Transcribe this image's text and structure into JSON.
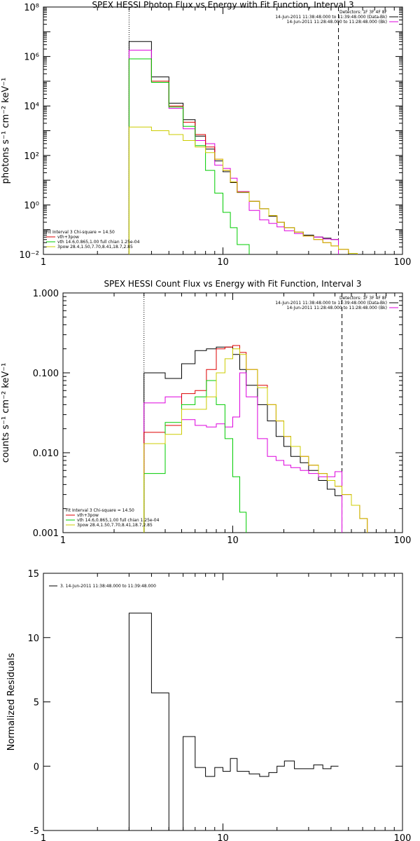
{
  "chart_data": [
    {
      "type": "line",
      "subtype": "histogram-step",
      "title": "SPEX HESSI Photon Flux vs Energy with Fit Function, Interval 3",
      "ylabel": "photons s⁻¹ cm⁻² keV⁻¹",
      "xlabel": "",
      "xscale": "log",
      "yscale": "log",
      "xlim": [
        1,
        100
      ],
      "ylim": [
        0.01,
        100000000
      ],
      "x_tick_labels": [
        "1",
        "10",
        "100"
      ],
      "y_tick_labels": [
        "10⁻²",
        "10⁰",
        "10²",
        "10⁴",
        "10⁶",
        "10⁸"
      ],
      "vertical_lines": [
        {
          "x": 3,
          "style": "dotted"
        },
        {
          "x": 44,
          "style": "dashed"
        }
      ],
      "legend_top": [
        "Detectors: 1F 3F 4F 8F",
        "14-Jun-2011 11:38:48.000 to 11:39:48.000 (Data-Bk)",
        "14-Jun-2011 11:28:48.000 to 11:28:48.000 (Bk)"
      ],
      "legend_bottom": [
        "Fit Interval 3   Chi-square = 14.50",
        "vth+3pow",
        "vth 14.6,0.865,1.00  full chian 1.25e-04",
        "3pow 28.4,1.50,7.70,8.41,18.7,2.85"
      ],
      "series": [
        {
          "name": "Data-Bk",
          "color": "#000000",
          "edges": [
            3,
            4,
            5,
            6,
            7,
            8,
            9,
            10,
            11,
            12,
            14,
            16,
            18,
            20,
            22,
            25,
            28,
            32,
            36,
            40,
            44
          ],
          "values": [
            4000000,
            150000,
            13000,
            2800,
            600,
            180,
            60,
            22,
            8,
            3.2,
            1.4,
            0.7,
            0.35,
            0.2,
            0.12,
            0.08,
            0.06,
            0.05,
            0.045,
            0.04
          ]
        },
        {
          "name": "Bk",
          "color": "#dd00dd",
          "edges": [
            3,
            4,
            5,
            6,
            7,
            8,
            9,
            10,
            11,
            12,
            14,
            16,
            18,
            20,
            22,
            25,
            28,
            32,
            36,
            40,
            44
          ],
          "values": [
            1800000,
            90000,
            8000,
            1200,
            400,
            300,
            40,
            30,
            12,
            3.5,
            0.6,
            0.25,
            0.18,
            0.13,
            0.09,
            0.07,
            0.055,
            0.05,
            0.042,
            0.04
          ]
        },
        {
          "name": "vth+3pow",
          "color": "#dd0000",
          "edges": [
            3,
            4,
            5,
            6,
            7,
            8,
            9,
            10,
            11,
            12,
            14,
            16,
            18,
            20,
            22,
            25,
            28,
            32,
            36,
            40,
            44,
            50,
            56
          ],
          "values": [
            800000,
            100000,
            10000,
            2200,
            700,
            220,
            70,
            25,
            8.5,
            3.3,
            1.4,
            0.7,
            0.37,
            0.2,
            0.12,
            0.08,
            0.055,
            0.04,
            0.03,
            0.022,
            0.016,
            0.011
          ]
        },
        {
          "name": "vth",
          "color": "#00cc00",
          "edges": [
            3,
            4,
            5,
            6,
            7,
            8,
            9,
            10,
            11,
            12,
            14,
            16
          ],
          "values": [
            800000,
            90000,
            9000,
            1500,
            250,
            25,
            3,
            0.5,
            0.12,
            0.025,
            0.004
          ]
        },
        {
          "name": "3pow",
          "color": "#cccc00",
          "edges": [
            3,
            4,
            5,
            6,
            7,
            8,
            9,
            10,
            11,
            12,
            14,
            16,
            18,
            20,
            22,
            25,
            28,
            32,
            36,
            40,
            44,
            50,
            56
          ],
          "values": [
            1400,
            1000,
            700,
            400,
            220,
            130,
            70,
            25,
            8.5,
            3.3,
            1.4,
            0.7,
            0.37,
            0.2,
            0.12,
            0.08,
            0.055,
            0.04,
            0.03,
            0.022,
            0.016,
            0.011
          ]
        }
      ]
    },
    {
      "type": "line",
      "subtype": "histogram-step",
      "title": "SPEX HESSI Count Flux vs Energy with Fit Function, Interval 3",
      "ylabel": "counts s⁻¹ cm⁻² keV⁻¹",
      "xlabel": "",
      "xscale": "log",
      "yscale": "log",
      "xlim": [
        1,
        100
      ],
      "ylim": [
        0.001,
        1
      ],
      "x_tick_labels": [
        "1",
        "10",
        "100"
      ],
      "y_tick_labels": [
        "0.001",
        "0.010",
        "0.100",
        "1.000"
      ],
      "vertical_lines": [
        {
          "x": 3,
          "style": "dotted"
        },
        {
          "x": 44,
          "style": "dashed"
        }
      ],
      "legend_top": [
        "Detectors: 1F 3F 4F 8F",
        "14-Jun-2011 11:38:48.000 to 11:39:48.000 (Data-Bk)",
        "14-Jun-2011 11:28:48.000 to 11:28:48.000 (Bk)"
      ],
      "legend_bottom": [
        "Fit Interval 3   Chi-square = 14.50",
        "vth+3pow",
        "vth 14.6,0.865,1.00  full chian 1.25e-04",
        "3pow 28.4,1.50,7.70,8.41,18.7,2.85"
      ],
      "series": [
        {
          "name": "Data-Bk",
          "color": "#000000",
          "edges": [
            3,
            4,
            5,
            6,
            7,
            8,
            9,
            10,
            11,
            12,
            14,
            16,
            18,
            20,
            22,
            25,
            28,
            32,
            36,
            40,
            44
          ],
          "values": [
            0.1,
            0.085,
            0.13,
            0.19,
            0.2,
            0.21,
            0.21,
            0.17,
            0.11,
            0.07,
            0.04,
            0.025,
            0.016,
            0.012,
            0.009,
            0.0075,
            0.006,
            0.0045,
            0.0035,
            0.0029
          ]
        },
        {
          "name": "Bk",
          "color": "#dd00dd",
          "edges": [
            3,
            4,
            5,
            6,
            7,
            8,
            9,
            10,
            11,
            12,
            14,
            16,
            18,
            20,
            22,
            25,
            28,
            32,
            36,
            40,
            44
          ],
          "values": [
            0.042,
            0.05,
            0.026,
            0.022,
            0.021,
            0.023,
            0.021,
            0.028,
            0.1,
            0.05,
            0.015,
            0.009,
            0.008,
            0.007,
            0.0065,
            0.006,
            0.0055,
            0.005,
            0.005,
            0.0058
          ]
        },
        {
          "name": "vth+3pow",
          "color": "#dd0000",
          "edges": [
            3,
            4,
            5,
            6,
            7,
            8,
            9,
            10,
            11,
            12,
            14,
            16,
            18,
            20,
            22,
            25,
            28,
            32,
            36,
            40,
            44,
            50,
            56,
            62
          ],
          "values": [
            0.018,
            0.022,
            0.055,
            0.06,
            0.11,
            0.2,
            0.21,
            0.22,
            0.18,
            0.11,
            0.07,
            0.04,
            0.025,
            0.016,
            0.012,
            0.009,
            0.007,
            0.0055,
            0.0045,
            0.0038,
            0.003,
            0.0022,
            0.0015
          ]
        },
        {
          "name": "vth",
          "color": "#00cc00",
          "edges": [
            3,
            4,
            5,
            6,
            7,
            8,
            9,
            10,
            11,
            12,
            14
          ],
          "values": [
            0.0055,
            0.024,
            0.04,
            0.05,
            0.08,
            0.04,
            0.015,
            0.005,
            0.0018,
            0.0009
          ]
        },
        {
          "name": "3pow",
          "color": "#cccc00",
          "edges": [
            3,
            4,
            5,
            6,
            7,
            8,
            9,
            10,
            11,
            12,
            14,
            16,
            18,
            20,
            22,
            25,
            28,
            32,
            36,
            40,
            44,
            50,
            56,
            62
          ],
          "values": [
            0.013,
            0.017,
            0.035,
            0.035,
            0.05,
            0.1,
            0.15,
            0.2,
            0.17,
            0.11,
            0.065,
            0.04,
            0.025,
            0.016,
            0.012,
            0.009,
            0.007,
            0.0055,
            0.0045,
            0.0038,
            0.003,
            0.0022,
            0.0015
          ]
        }
      ]
    },
    {
      "type": "line",
      "subtype": "histogram-step",
      "title": "",
      "ylabel": "Normalized Residuals",
      "xlabel": "",
      "xscale": "log",
      "yscale": "linear",
      "xlim": [
        1,
        100
      ],
      "ylim": [
        -5,
        15
      ],
      "x_tick_labels": [
        "1",
        "10",
        "100"
      ],
      "y_tick_values": [
        -5,
        0,
        5,
        10,
        15
      ],
      "y_tick_labels": [
        "-5",
        "0",
        "5",
        "10",
        "15"
      ],
      "legend": [
        "3. 14-Jun-2011 11:38:48.000 to 11:39:48.000"
      ],
      "series": [
        {
          "name": "3. 14-Jun-2011 11:38:48.000 to 11:39:48.000",
          "color": "#000000",
          "edges": [
            3,
            4,
            5,
            6,
            7,
            8,
            9,
            10,
            11,
            12,
            14,
            16,
            18,
            20,
            22,
            25,
            28,
            32,
            36,
            40,
            44
          ],
          "values": [
            11.9,
            5.7,
            -5.3,
            2.3,
            -0.1,
            -0.8,
            -0.1,
            -0.4,
            0.6,
            -0.4,
            -0.6,
            -0.8,
            -0.5,
            0.0,
            0.4,
            -0.2,
            -0.2,
            0.1,
            -0.2,
            0.0
          ]
        }
      ]
    }
  ]
}
